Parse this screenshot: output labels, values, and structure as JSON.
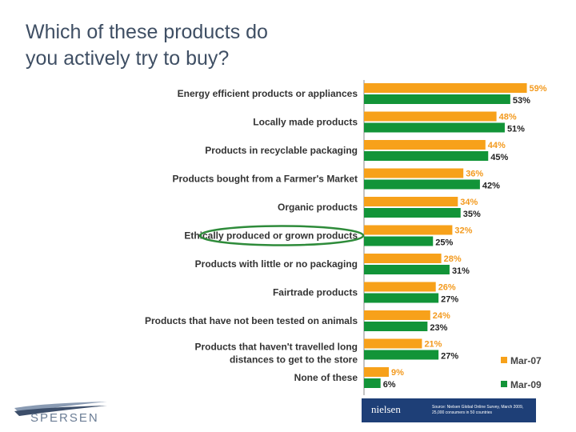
{
  "slide": {
    "title": "Which of these products do you actively try to buy?",
    "footer": {
      "brand": "nielsen",
      "source": "Source: Nielsen Global Online Survey, March 2009, 25,000 consumers in 50 countries",
      "logo_text": "SPERSEN"
    }
  },
  "colors": {
    "mar07": "#f7a11a",
    "mar09": "#129438",
    "highlight_ring": "#2e8b3a"
  },
  "chart_data": {
    "type": "bar",
    "orientation": "horizontal",
    "categories": [
      "Energy efficient products or appliances",
      "Locally made products",
      "Products in recyclable packaging",
      "Products bought from a Farmer's Market",
      "Organic products",
      "Ethically produced or grown products",
      "Products with little or no packaging",
      "Fairtrade products",
      "Products that have not been tested on animals",
      "Products that haven't travelled long distances to get to the store",
      "None of these"
    ],
    "series": [
      {
        "name": "Mar-07",
        "values": [
          59,
          48,
          44,
          36,
          34,
          32,
          28,
          26,
          24,
          21,
          9
        ],
        "labels": [
          "59%",
          "48%",
          "44%",
          "36%",
          "34%",
          "32%",
          "28%",
          "26%",
          "24%",
          "21%",
          "9%"
        ]
      },
      {
        "name": "Mar-09",
        "values": [
          53,
          51,
          45,
          42,
          35,
          25,
          31,
          27,
          23,
          27,
          6
        ],
        "labels": [
          "53%",
          "51%",
          "45%",
          "42%",
          "35%",
          "25%",
          "31%",
          "27%",
          "23%",
          "27%",
          "6%"
        ]
      }
    ],
    "xlim": [
      0,
      60
    ],
    "highlighted_category": "Ethically produced or grown products",
    "legend_position": "bottom-right"
  }
}
